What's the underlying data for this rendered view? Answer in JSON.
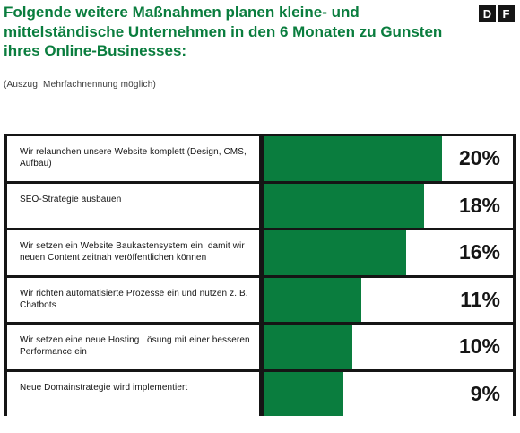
{
  "title": "Folgende weitere Maßnahmen planen kleine- und mittelständische Unternehmen in den 6 Monaten zu Gunsten ihres Online-Businesses:",
  "subtitle": "(Auszug, Mehrfachnennung möglich)",
  "logo": {
    "letter1": "D",
    "letter2": "F"
  },
  "colors": {
    "bar": "#0a7d3e",
    "frame": "#151515",
    "title": "#0a7d3e"
  },
  "chart_data": {
    "type": "bar",
    "orientation": "horizontal",
    "title": "Folgende weitere Maßnahmen planen kleine- und mittelständische Unternehmen in den 6 Monaten zu Gunsten ihres Online-Businesses:",
    "categories": [
      "Wir relaunchen unsere Website komplett (Design, CMS, Aufbau)",
      "SEO-Strategie ausbauen",
      "Wir setzen ein Website Baukastensystem ein, damit wir neuen Content zeitnah veröffentlichen können",
      "Wir richten automatisierte Prozesse ein und nutzen z. B. Chatbots",
      "Wir setzen eine neue Hosting Lösung mit einer besseren Performance ein",
      "Neue Domainstrategie wird implementiert"
    ],
    "values": [
      20,
      18,
      16,
      11,
      10,
      9
    ],
    "value_labels": [
      "20%",
      "18%",
      "16%",
      "11%",
      "10%",
      "9%"
    ],
    "unit": "%",
    "xlim": [
      0,
      28
    ]
  }
}
